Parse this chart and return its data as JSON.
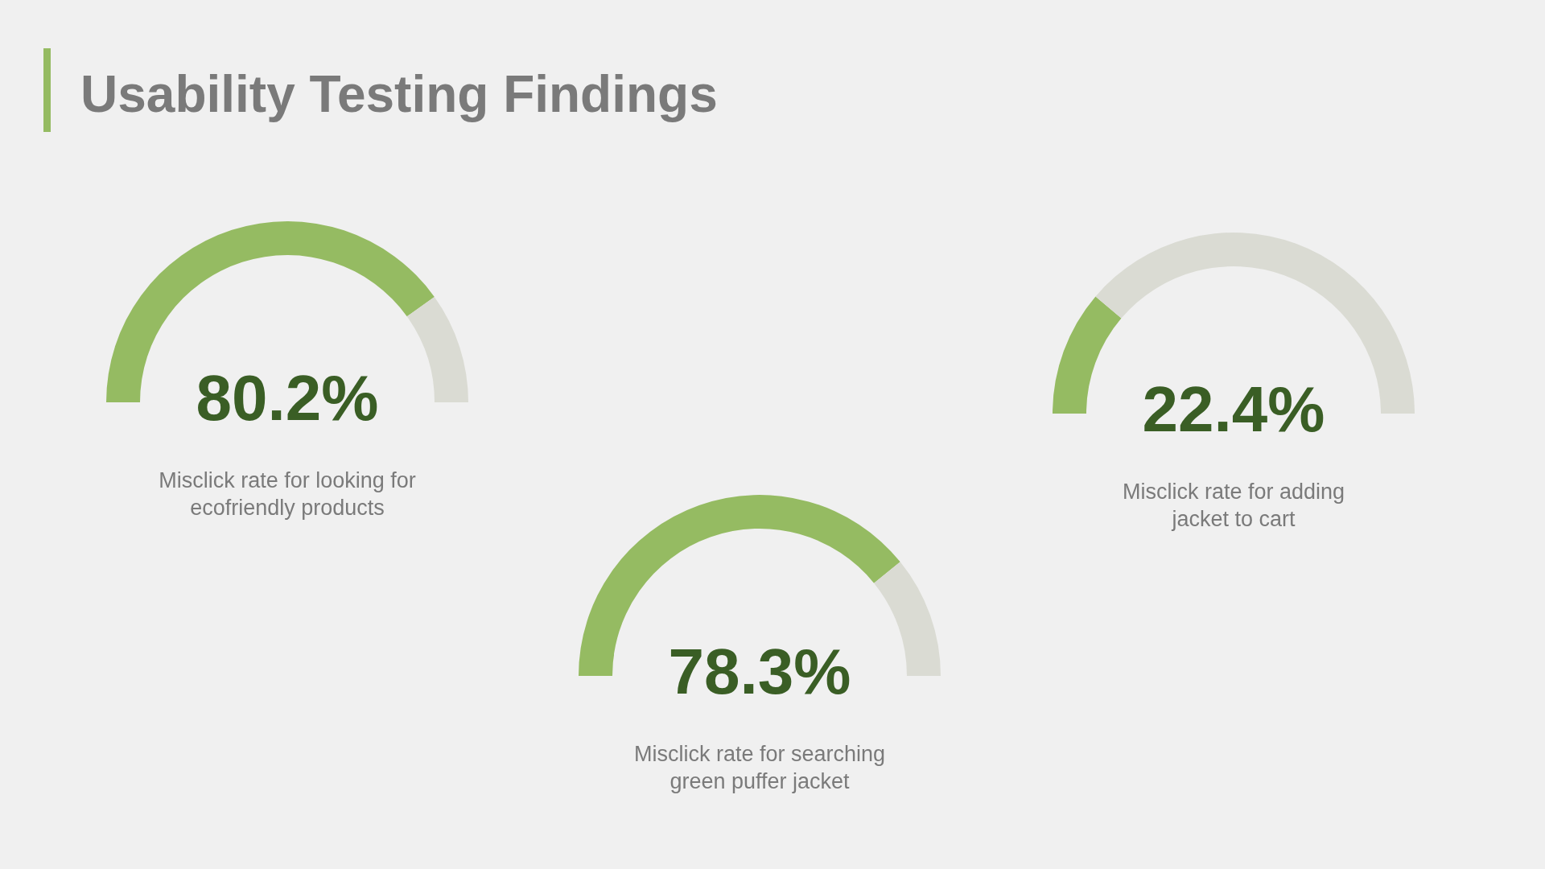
{
  "chart_data": [
    {
      "type": "donut",
      "title": "Usability Testing Findings",
      "categories": [
        null,
        null
      ],
      "values": [
        80.2,
        19.8
      ],
      "colors": [
        "#95bb62",
        "#dadbd3"
      ],
      "annotations": [
        "80.2%",
        "Misclick rate for looking for ecofriendly products"
      ]
    },
    {
      "type": "donut",
      "categories": [
        null,
        null
      ],
      "values": [
        78.3,
        21.7
      ],
      "colors": [
        "#95bb62",
        "#dadbd3"
      ],
      "annotations": [
        "78.3%",
        "Misclick rate for searching green puffer jacket"
      ]
    },
    {
      "type": "donut",
      "categories": [
        null,
        null
      ],
      "values": [
        22.4,
        77.6
      ],
      "colors": [
        "#95bb62",
        "#dadbd3"
      ],
      "annotations": [
        "22.4%",
        "Misclick rate for adding jacket to cart"
      ]
    }
  ]
}
